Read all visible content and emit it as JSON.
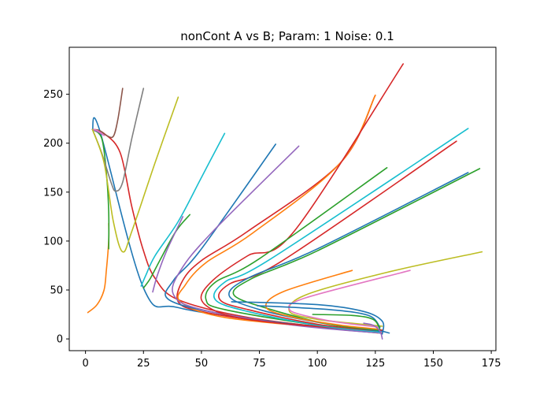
{
  "chart_data": {
    "type": "line",
    "title": "nonCont A vs B; Param: 1 Noise: 0.1",
    "xlabel": "",
    "ylabel": "",
    "xlim": [
      -7,
      177
    ],
    "ylim": [
      -12,
      298
    ],
    "xticks": [
      0,
      25,
      50,
      75,
      100,
      125,
      150,
      175
    ],
    "yticks": [
      0,
      50,
      100,
      150,
      200,
      250
    ],
    "grid": false,
    "series": [
      {
        "color": "#1f77b4",
        "points": [
          [
            3,
            214
          ],
          [
            6,
            214
          ],
          [
            25,
            52
          ],
          [
            40,
            32
          ],
          [
            80,
            18
          ],
          [
            110,
            11
          ],
          [
            125,
            9
          ],
          [
            131,
            6
          ]
        ]
      },
      {
        "color": "#ff7f0e",
        "points": [
          [
            1,
            27
          ],
          [
            5,
            35
          ],
          [
            8,
            50
          ],
          [
            9,
            70
          ],
          [
            10,
            100
          ],
          [
            10,
            118
          ]
        ]
      },
      {
        "color": "#2ca02c",
        "points": [
          [
            3,
            214
          ],
          [
            7,
            205
          ],
          [
            9,
            170
          ],
          [
            10,
            130
          ],
          [
            10,
            92
          ]
        ]
      },
      {
        "color": "#d62728",
        "points": [
          [
            3,
            214
          ],
          [
            8,
            210
          ],
          [
            15,
            190
          ],
          [
            20,
            135
          ],
          [
            25,
            90
          ],
          [
            30,
            62
          ],
          [
            40,
            40
          ],
          [
            70,
            22
          ],
          [
            110,
            10
          ],
          [
            128,
            6
          ]
        ]
      },
      {
        "color": "#9467bd",
        "points": [
          [
            3,
            214
          ],
          [
            5,
            212
          ],
          [
            8,
            208
          ]
        ]
      },
      {
        "color": "#8c564b",
        "points": [
          [
            3,
            214
          ],
          [
            6,
            213
          ],
          [
            9,
            208
          ],
          [
            12,
            207
          ],
          [
            14,
            225
          ],
          [
            16,
            256
          ]
        ]
      },
      {
        "color": "#e377c2",
        "points": [
          [
            3,
            214
          ],
          [
            5,
            213
          ],
          [
            8,
            208
          ]
        ]
      },
      {
        "color": "#7f7f7f",
        "points": [
          [
            3,
            214
          ],
          [
            7,
            190
          ],
          [
            11,
            160
          ],
          [
            13,
            151
          ],
          [
            16,
            160
          ],
          [
            20,
            205
          ],
          [
            25,
            256
          ]
        ]
      },
      {
        "color": "#bcbd22",
        "points": [
          [
            3,
            214
          ],
          [
            8,
            180
          ],
          [
            12,
            120
          ],
          [
            16,
            89
          ],
          [
            20,
            110
          ],
          [
            30,
            180
          ],
          [
            40,
            247
          ]
        ]
      },
      {
        "color": "#17becf",
        "points": [
          [
            24,
            54
          ],
          [
            26,
            65
          ],
          [
            30,
            85
          ],
          [
            40,
            120
          ],
          [
            50,
            165
          ],
          [
            60,
            210
          ]
        ]
      },
      {
        "color": "#d62728",
        "points": [
          [
            128,
            6
          ],
          [
            120,
            8
          ],
          [
            80,
            17
          ],
          [
            50,
            28
          ],
          [
            40,
            38
          ],
          [
            42,
            60
          ],
          [
            50,
            80
          ],
          [
            70,
            110
          ],
          [
            110,
            180
          ],
          [
            125,
            249
          ]
        ]
      },
      {
        "color": "#ff7f0e",
        "points": [
          [
            126,
            6
          ],
          [
            110,
            10
          ],
          [
            60,
            22
          ],
          [
            41,
            38
          ],
          [
            43,
            55
          ],
          [
            52,
            78
          ],
          [
            72,
            108
          ],
          [
            110,
            180
          ],
          [
            125,
            249
          ]
        ]
      },
      {
        "color": "#1f77b4",
        "points": [
          [
            127,
            6
          ],
          [
            100,
            12
          ],
          [
            60,
            25
          ],
          [
            36,
            40
          ],
          [
            38,
            60
          ],
          [
            50,
            92
          ],
          [
            82,
            199
          ]
        ]
      },
      {
        "color": "#9467bd",
        "points": [
          [
            127,
            6
          ],
          [
            90,
            14
          ],
          [
            50,
            30
          ],
          [
            38,
            45
          ],
          [
            41,
            70
          ],
          [
            55,
            110
          ],
          [
            92,
            197
          ]
        ]
      },
      {
        "color": "#2ca02c",
        "points": [
          [
            25,
            52
          ],
          [
            28,
            62
          ],
          [
            32,
            80
          ],
          [
            39,
            110
          ],
          [
            45,
            127
          ]
        ]
      },
      {
        "color": "#9467bd",
        "points": [
          [
            29,
            48
          ],
          [
            31,
            65
          ],
          [
            35,
            90
          ],
          [
            42,
            125
          ]
        ]
      },
      {
        "color": "#d62728",
        "points": [
          [
            128,
            9
          ],
          [
            110,
            11
          ],
          [
            80,
            17
          ],
          [
            60,
            25
          ],
          [
            50,
            40
          ],
          [
            55,
            60
          ],
          [
            70,
            85
          ],
          [
            90,
            110
          ],
          [
            137,
            281
          ]
        ]
      },
      {
        "color": "#2ca02c",
        "points": [
          [
            126,
            8
          ],
          [
            100,
            14
          ],
          [
            60,
            30
          ],
          [
            52,
            40
          ],
          [
            56,
            58
          ],
          [
            75,
            82
          ],
          [
            130,
            175
          ]
        ]
      },
      {
        "color": "#17becf",
        "points": [
          [
            127,
            7
          ],
          [
            100,
            14
          ],
          [
            70,
            28
          ],
          [
            56,
            40
          ],
          [
            60,
            58
          ],
          [
            80,
            82
          ],
          [
            165,
            215
          ]
        ]
      },
      {
        "color": "#d62728",
        "points": [
          [
            127,
            8
          ],
          [
            100,
            15
          ],
          [
            70,
            30
          ],
          [
            58,
            40
          ],
          [
            62,
            56
          ],
          [
            85,
            80
          ],
          [
            160,
            202
          ]
        ]
      },
      {
        "color": "#1f77b4",
        "points": [
          [
            127,
            8
          ],
          [
            100,
            17
          ],
          [
            75,
            30
          ],
          [
            62,
            44
          ],
          [
            70,
            62
          ],
          [
            100,
            92
          ],
          [
            165,
            170
          ]
        ]
      },
      {
        "color": "#2ca02c",
        "points": [
          [
            126,
            9
          ],
          [
            105,
            15
          ],
          [
            80,
            30
          ],
          [
            64,
            45
          ],
          [
            72,
            62
          ],
          [
            100,
            90
          ],
          [
            170,
            174
          ]
        ]
      },
      {
        "color": "#ff7f0e",
        "points": [
          [
            126,
            10
          ],
          [
            110,
            14
          ],
          [
            90,
            22
          ],
          [
            78,
            32
          ],
          [
            85,
            48
          ],
          [
            115,
            70
          ]
        ]
      },
      {
        "color": "#bcbd22",
        "points": [
          [
            128,
            13
          ],
          [
            115,
            16
          ],
          [
            100,
            20
          ],
          [
            88,
            28
          ],
          [
            95,
            45
          ],
          [
            130,
            68
          ],
          [
            171,
            89
          ]
        ]
      },
      {
        "color": "#e377c2",
        "points": [
          [
            127,
            12
          ],
          [
            112,
            16
          ],
          [
            98,
            22
          ],
          [
            88,
            30
          ],
          [
            95,
            42
          ],
          [
            140,
            70
          ]
        ]
      },
      {
        "color": "#1f77b4",
        "points": [
          [
            63,
            38
          ],
          [
            100,
            35
          ],
          [
            120,
            28
          ],
          [
            128,
            18
          ],
          [
            128,
            5
          ]
        ]
      },
      {
        "color": "#1f77b4",
        "points": [
          [
            74,
            34
          ],
          [
            105,
            30
          ],
          [
            122,
            24
          ],
          [
            127,
            12
          ]
        ]
      },
      {
        "color": "#2ca02c",
        "points": [
          [
            98,
            25
          ],
          [
            115,
            24
          ],
          [
            124,
            20
          ],
          [
            127,
            10
          ]
        ]
      },
      {
        "color": "#9467bd",
        "points": [
          [
            120,
            16
          ],
          [
            124,
            14
          ],
          [
            127,
            8
          ],
          [
            128,
            0
          ]
        ]
      }
    ]
  }
}
